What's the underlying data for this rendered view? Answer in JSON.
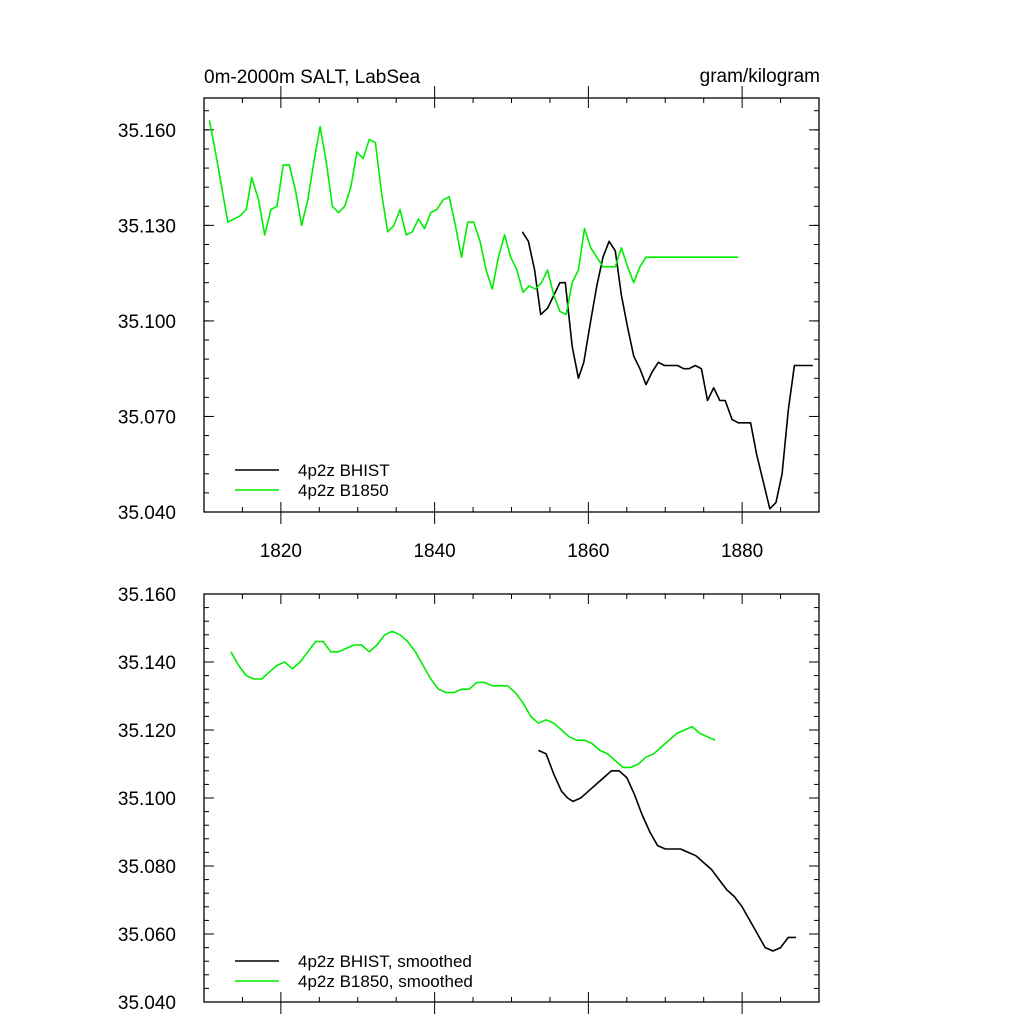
{
  "chart_data": [
    {
      "type": "line",
      "title": "0m-2000m SALT, LabSea",
      "units": "gram/kilogram",
      "xlim": [
        1810,
        1890
      ],
      "ylim": [
        35.04,
        35.17
      ],
      "x_ticks": [
        1820,
        1840,
        1860,
        1880
      ],
      "x_tick_labels": [
        "1820",
        "1840",
        "1860",
        "1880"
      ],
      "y_ticks": [
        35.04,
        35.07,
        35.1,
        35.13,
        35.16
      ],
      "y_tick_labels": [
        "35.040",
        "35.070",
        "35.100",
        "35.130",
        "35.160"
      ],
      "legend_position": "bottom-left",
      "series": [
        {
          "name": "4p2z BHIST",
          "color": "#000000",
          "x": [
            1851.4,
            1852.2,
            1853.0,
            1853.8,
            1854.7,
            1855.5,
            1856.3,
            1857.0,
            1857.9,
            1858.7,
            1859.4,
            1860.3,
            1861.1,
            1861.9,
            1862.7,
            1863.5,
            1864.3,
            1865.1,
            1865.9,
            1866.7,
            1867.5,
            1868.3,
            1869.1,
            1869.9,
            1870.7,
            1871.6,
            1872.4,
            1873.1,
            1873.9,
            1874.7,
            1875.5,
            1876.3,
            1877.1,
            1877.8,
            1878.7,
            1879.5,
            1880.3,
            1881.1,
            1881.9,
            1882.7,
            1883.6,
            1884.4,
            1885.2,
            1886.0,
            1886.8,
            1887.6,
            1888.4,
            1889.2
          ],
          "values": [
            35.128,
            35.125,
            35.116,
            35.102,
            35.104,
            35.108,
            35.112,
            35.112,
            35.092,
            35.082,
            35.087,
            35.1,
            35.111,
            35.12,
            35.125,
            35.122,
            35.108,
            35.098,
            35.089,
            35.085,
            35.08,
            35.084,
            35.087,
            35.086,
            35.086,
            35.086,
            35.085,
            35.085,
            35.086,
            35.085,
            35.075,
            35.079,
            35.075,
            35.075,
            35.069,
            35.068,
            35.068,
            35.068,
            35.058,
            35.05,
            35.041,
            35.043,
            35.052,
            35.072,
            35.086,
            35.086,
            35.086,
            35.086
          ]
        },
        {
          "name": "4p2z B1850",
          "color": "#00ee00",
          "x": [
            1810.7,
            1811.5,
            1812.3,
            1813.1,
            1813.9,
            1814.7,
            1815.5,
            1816.2,
            1817.1,
            1817.9,
            1818.7,
            1819.5,
            1820.3,
            1821.1,
            1821.9,
            1822.7,
            1823.5,
            1824.3,
            1825.1,
            1825.9,
            1826.7,
            1827.5,
            1828.3,
            1829.1,
            1829.9,
            1830.7,
            1831.5,
            1832.3,
            1833.1,
            1833.9,
            1834.7,
            1835.5,
            1836.3,
            1837.1,
            1837.9,
            1838.7,
            1839.5,
            1840.3,
            1841.1,
            1841.9,
            1842.7,
            1843.5,
            1844.3,
            1845.1,
            1845.9,
            1846.7,
            1847.5,
            1848.3,
            1849.1,
            1849.9,
            1850.7,
            1851.5,
            1852.3,
            1853.1,
            1853.9,
            1854.7,
            1855.5,
            1856.3,
            1857.1,
            1857.9,
            1858.7,
            1859.5,
            1860.3,
            1861.1,
            1861.9,
            1862.7,
            1863.5,
            1864.3,
            1865.1,
            1865.9,
            1866.7,
            1867.5,
            1868.3,
            1869.1,
            1869.9,
            1870.7,
            1871.5,
            1872.3,
            1873.1,
            1873.9,
            1874.7,
            1875.5,
            1876.3,
            1877.1,
            1877.9,
            1878.7,
            1879.5
          ],
          "values": [
            35.163,
            35.153,
            35.142,
            35.131,
            35.132,
            35.133,
            35.135,
            35.145,
            35.138,
            35.127,
            35.135,
            35.136,
            35.149,
            35.149,
            35.141,
            35.13,
            35.138,
            35.15,
            35.161,
            35.15,
            35.136,
            35.134,
            35.136,
            35.142,
            35.153,
            35.151,
            35.157,
            35.156,
            35.14,
            35.128,
            35.13,
            35.135,
            35.127,
            35.128,
            35.132,
            35.129,
            35.134,
            35.135,
            35.138,
            35.139,
            35.13,
            35.12,
            35.131,
            35.131,
            35.125,
            35.116,
            35.11,
            35.12,
            35.127,
            35.12,
            35.116,
            35.109,
            35.111,
            35.11,
            35.112,
            35.116,
            35.108,
            35.103,
            35.102,
            35.112,
            35.116,
            35.129,
            35.123,
            35.12,
            35.117,
            35.117,
            35.117,
            35.123,
            35.117,
            35.112,
            35.117,
            35.12,
            35.12,
            35.12,
            35.12,
            35.12,
            35.12,
            35.12,
            35.12,
            35.12,
            35.12,
            35.12,
            35.12,
            35.12,
            35.12,
            35.12,
            35.12
          ]
        }
      ]
    },
    {
      "type": "line",
      "title": "",
      "xlim": [
        1810,
        1890
      ],
      "ylim": [
        35.04,
        35.16
      ],
      "x_ticks": [
        1820,
        1840,
        1860,
        1880
      ],
      "y_ticks": [
        35.04,
        35.06,
        35.08,
        35.1,
        35.12,
        35.14,
        35.16
      ],
      "y_tick_labels": [
        "35.040",
        "35.060",
        "35.080",
        "35.100",
        "35.120",
        "35.140",
        "35.160"
      ],
      "legend_position": "bottom-left",
      "series": [
        {
          "name": "4p2z BHIST, smoothed",
          "color": "#000000",
          "x": [
            1853.5,
            1854.5,
            1855.5,
            1856.5,
            1857.3,
            1858.0,
            1859.0,
            1860.0,
            1861.0,
            1862.0,
            1863.0,
            1864.0,
            1865.0,
            1866.0,
            1867.0,
            1868.0,
            1869.0,
            1870.0,
            1871.0,
            1872.0,
            1873.0,
            1874.0,
            1875.0,
            1876.0,
            1877.0,
            1878.0,
            1879.0,
            1880.0,
            1881.0,
            1882.0,
            1883.0,
            1884.0,
            1885.0,
            1886.0,
            1887.0
          ],
          "values": [
            35.114,
            35.113,
            35.107,
            35.102,
            35.1,
            35.099,
            35.1,
            35.102,
            35.104,
            35.106,
            35.108,
            35.108,
            35.106,
            35.101,
            35.095,
            35.09,
            35.086,
            35.085,
            35.085,
            35.085,
            35.084,
            35.083,
            35.081,
            35.079,
            35.076,
            35.073,
            35.071,
            35.068,
            35.064,
            35.06,
            35.056,
            35.055,
            35.056,
            35.059,
            35.059
          ]
        },
        {
          "name": "4p2z B1850, smoothed",
          "color": "#00ee00",
          "x": [
            1813.5,
            1814.5,
            1815.5,
            1816.5,
            1817.5,
            1818.5,
            1819.5,
            1820.5,
            1821.5,
            1822.5,
            1823.5,
            1824.5,
            1825.5,
            1826.5,
            1827.5,
            1828.5,
            1829.5,
            1830.5,
            1831.5,
            1832.5,
            1833.5,
            1834.5,
            1835.5,
            1836.5,
            1837.5,
            1838.5,
            1839.5,
            1840.5,
            1841.5,
            1842.5,
            1843.5,
            1844.5,
            1845.5,
            1846.5,
            1847.5,
            1848.5,
            1849.5,
            1850.5,
            1851.5,
            1852.5,
            1853.5,
            1854.5,
            1855.5,
            1856.5,
            1857.5,
            1858.5,
            1859.5,
            1860.5,
            1861.5,
            1862.5,
            1863.5,
            1864.5,
            1865.5,
            1866.5,
            1867.5,
            1868.5,
            1869.5,
            1870.5,
            1871.5,
            1872.5,
            1873.5,
            1874.5,
            1875.5,
            1876.5
          ],
          "values": [
            35.143,
            35.139,
            35.136,
            35.135,
            35.135,
            35.137,
            35.139,
            35.14,
            35.138,
            35.14,
            35.143,
            35.146,
            35.146,
            35.143,
            35.143,
            35.144,
            35.145,
            35.145,
            35.143,
            35.145,
            35.148,
            35.149,
            35.148,
            35.146,
            35.143,
            35.139,
            35.135,
            35.132,
            35.131,
            35.131,
            35.132,
            35.132,
            35.134,
            35.134,
            35.133,
            35.133,
            35.133,
            35.131,
            35.128,
            35.124,
            35.122,
            35.123,
            35.122,
            35.12,
            35.118,
            35.117,
            35.117,
            35.116,
            35.114,
            35.113,
            35.111,
            35.109,
            35.109,
            35.11,
            35.112,
            35.113,
            35.115,
            35.117,
            35.119,
            35.12,
            35.121,
            35.119,
            35.118,
            35.117
          ]
        }
      ]
    }
  ]
}
